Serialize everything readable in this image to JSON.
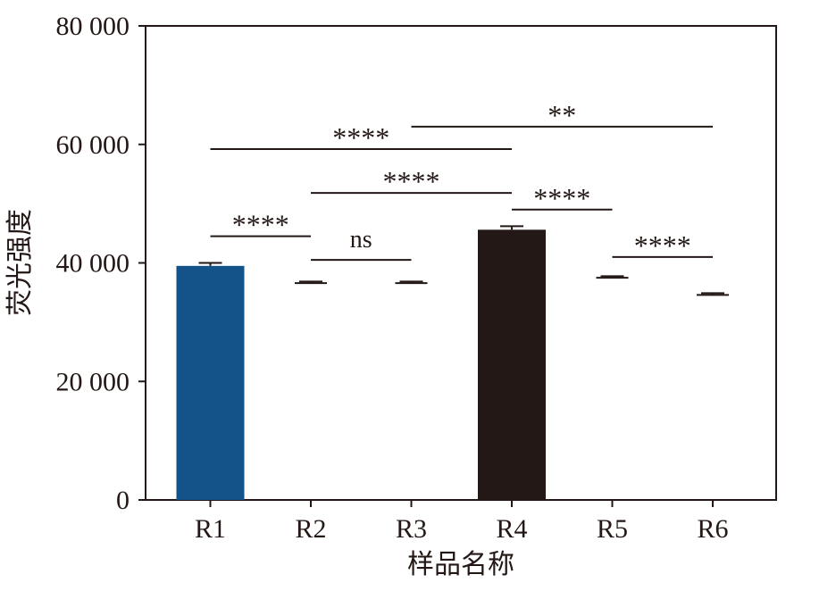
{
  "chart_data": {
    "type": "bar",
    "title": "",
    "xlabel": "样品名称",
    "ylabel": "荧光强度",
    "categories": [
      "R1",
      "R2",
      "R3",
      "R4",
      "R5",
      "R6"
    ],
    "values": [
      39500,
      36600,
      36600,
      45600,
      37500,
      34600
    ],
    "errors": [
      500,
      250,
      250,
      600,
      250,
      300
    ],
    "bar_colors": [
      "#14528a",
      "#ffffff",
      "#ffffff",
      "#231815",
      "#ffffff",
      "#ffffff"
    ],
    "ylim": [
      0,
      80000
    ],
    "yticks": [
      0,
      20000,
      40000,
      60000,
      80000
    ],
    "ytick_labels": [
      "0",
      "20 000",
      "40 000",
      "60 000",
      "80 000"
    ],
    "grid": false,
    "legend": "none",
    "significance": [
      {
        "from": "R1",
        "to": "R2",
        "label": "****",
        "y": 44500
      },
      {
        "from": "R2",
        "to": "R3",
        "label": "ns",
        "y": 40500
      },
      {
        "from": "R1",
        "to": "R4",
        "label": "****",
        "y": 59200
      },
      {
        "from": "R2",
        "to": "R4",
        "label": "****",
        "y": 51800
      },
      {
        "from": "R3",
        "to": "R6",
        "label": "**",
        "y": 63000
      },
      {
        "from": "R4",
        "to": "R5",
        "label": "****",
        "y": 49000
      },
      {
        "from": "R5",
        "to": "R6",
        "label": "****",
        "y": 41000
      }
    ]
  },
  "colors": {
    "axis": "#231815",
    "accent_blue": "#14528a",
    "accent_dark": "#231815"
  }
}
